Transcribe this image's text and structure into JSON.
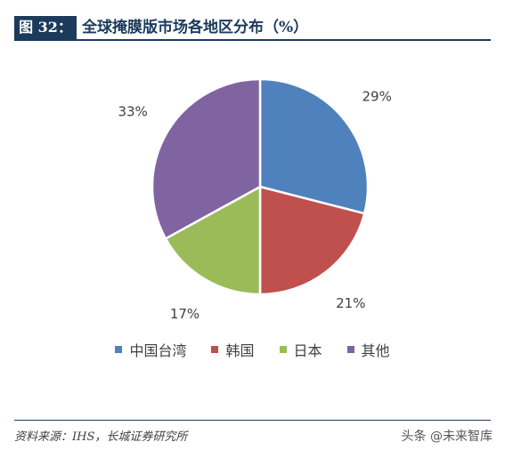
{
  "header": {
    "tag": "图 32：",
    "title": "全球掩膜版市场各地区分布（%）"
  },
  "chart_data": {
    "type": "pie",
    "title": "全球掩膜版市场各地区分布（%）",
    "slices": [
      {
        "label": "中国台湾",
        "value": 29,
        "display": "29%",
        "color": "#4f81bd"
      },
      {
        "label": "韩国",
        "value": 21,
        "display": "21%",
        "color": "#c0504d"
      },
      {
        "label": "日本",
        "value": 17,
        "display": "17%",
        "color": "#9bbb59"
      },
      {
        "label": "其他",
        "value": 33,
        "display": "33%",
        "color": "#8064a2"
      }
    ],
    "start": "12 o'clock",
    "direction": "clockwise",
    "legend_position": "bottom"
  },
  "footer": {
    "source": "资料来源：IHS，长城证券研究所",
    "watermark": "头条 @未来智库"
  }
}
